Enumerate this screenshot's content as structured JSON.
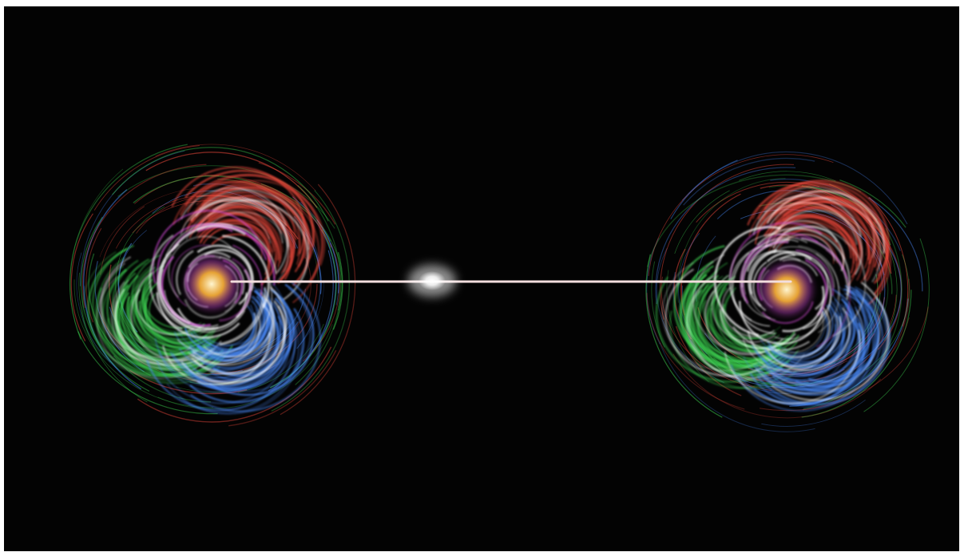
{
  "image": {
    "subject": "two-swirling-light-orbs-connected-by-beam",
    "background_color": "#030303",
    "frame_color": "#ffffff",
    "swirl_colors": [
      "#e8473b",
      "#3ccf4f",
      "#4a8cff",
      "#ffffff",
      "#ffb43a",
      "#d44bd8"
    ],
    "beam_color": "#f3dede",
    "center_glow_color": "#ffffff"
  }
}
